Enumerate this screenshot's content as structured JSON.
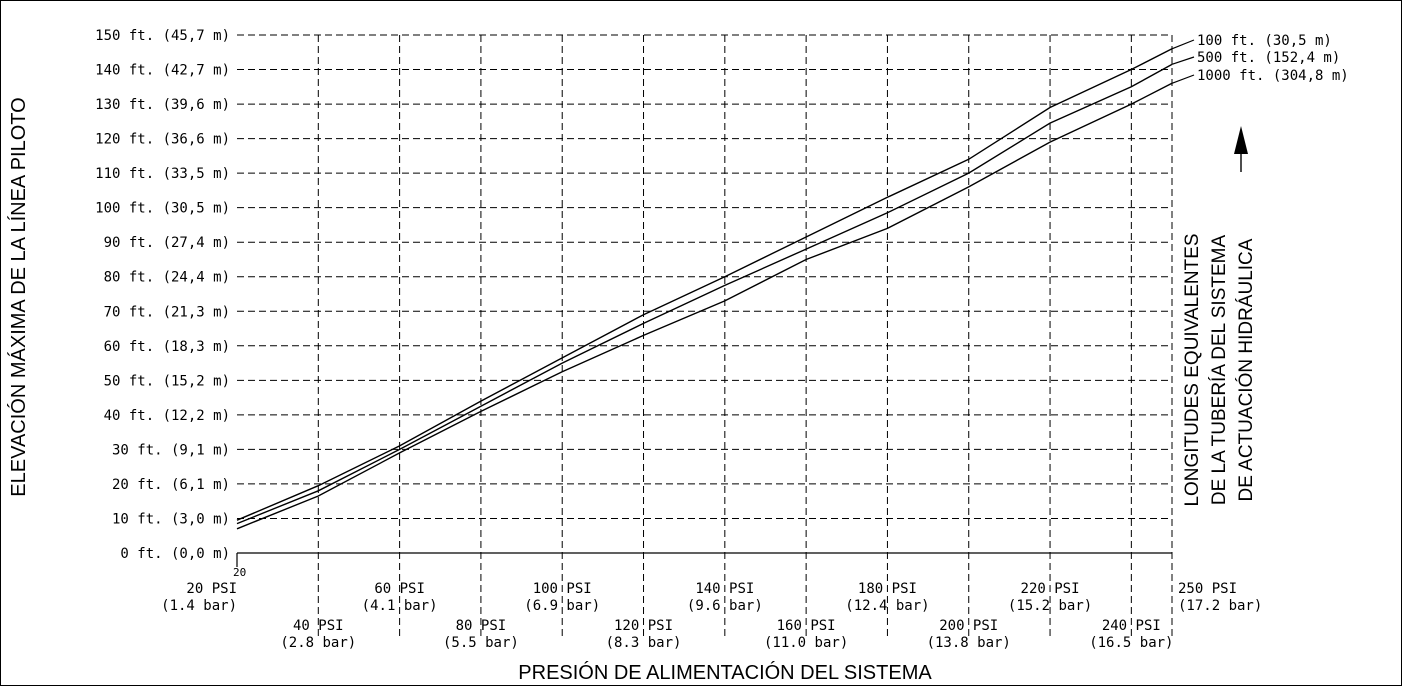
{
  "chart_data": {
    "type": "line",
    "ylabel": "ELEVACIÓN MÁXIMA DE LA LÍNEA PILOTO",
    "xlabel": "PRESIÓN DE ALIMENTACIÓN DEL SISTEMA",
    "right_label_lines": [
      "LONGITUDES EQUIVALENTES",
      "DE LA TUBERÍA DEL SISTEMA",
      "DE ACTUACIÓN HIDRÁULICA"
    ],
    "stray_label": "20",
    "xlim": [
      20,
      250
    ],
    "ylim": [
      0,
      150
    ],
    "y_ticks": [
      {
        "v": 0,
        "label": "0 ft. (0,0 m)"
      },
      {
        "v": 10,
        "label": "10 ft. (3,0 m)"
      },
      {
        "v": 20,
        "label": "20 ft. (6,1 m)"
      },
      {
        "v": 30,
        "label": "30 ft. (9,1 m)"
      },
      {
        "v": 40,
        "label": "40 ft. (12,2 m)"
      },
      {
        "v": 50,
        "label": "50 ft. (15,2 m)"
      },
      {
        "v": 60,
        "label": "60 ft. (18,3 m)"
      },
      {
        "v": 70,
        "label": "70 ft. (21,3 m)"
      },
      {
        "v": 80,
        "label": "80 ft. (24,4 m)"
      },
      {
        "v": 90,
        "label": "90 ft. (27,4 m)"
      },
      {
        "v": 100,
        "label": "100 ft. (30,5 m)"
      },
      {
        "v": 110,
        "label": "110 ft. (33,5 m)"
      },
      {
        "v": 120,
        "label": "120 ft. (36,6 m)"
      },
      {
        "v": 130,
        "label": "130 ft. (39,6 m)"
      },
      {
        "v": 140,
        "label": "140 ft. (42,7 m)"
      },
      {
        "v": 150,
        "label": "150 ft. (45,7 m)"
      }
    ],
    "x_ticks": [
      {
        "v": 20,
        "psi": "20 PSI",
        "bar": "(1.4 bar)",
        "row": 1
      },
      {
        "v": 40,
        "psi": "40 PSI",
        "bar": "(2.8 bar)",
        "row": 2
      },
      {
        "v": 60,
        "psi": "60 PSI",
        "bar": "(4.1 bar)",
        "row": 1
      },
      {
        "v": 80,
        "psi": "80 PSI",
        "bar": "(5.5 bar)",
        "row": 2
      },
      {
        "v": 100,
        "psi": "100 PSI",
        "bar": "(6.9 bar)",
        "row": 1
      },
      {
        "v": 120,
        "psi": "120 PSI",
        "bar": "(8.3 bar)",
        "row": 2
      },
      {
        "v": 140,
        "psi": "140 PSI",
        "bar": "(9.6 bar)",
        "row": 1
      },
      {
        "v": 160,
        "psi": "160 PSI",
        "bar": "(11.0 bar)",
        "row": 2
      },
      {
        "v": 180,
        "psi": "180 PSI",
        "bar": "(12.4 bar)",
        "row": 1
      },
      {
        "v": 200,
        "psi": "200 PSI",
        "bar": "(13.8 bar)",
        "row": 2
      },
      {
        "v": 220,
        "psi": "220 PSI",
        "bar": "(15.2 bar)",
        "row": 1
      },
      {
        "v": 240,
        "psi": "240 PSI",
        "bar": "(16.5 bar)",
        "row": 2
      },
      {
        "v": 250,
        "psi": "250 PSI",
        "bar": "(17.2 bar)",
        "row": 1
      }
    ],
    "series": [
      {
        "name": "100 ft. (30,5 m)",
        "x": [
          20,
          40,
          60,
          80,
          100,
          120,
          140,
          160,
          180,
          200,
          220,
          240,
          250
        ],
        "y": [
          9.5,
          19.5,
          31,
          44,
          56.5,
          69,
          80,
          91.5,
          103,
          114,
          129,
          140,
          146
        ]
      },
      {
        "name": "500 ft. (152,4 m)",
        "x": [
          20,
          40,
          60,
          80,
          100,
          120,
          140,
          160,
          180,
          200,
          220,
          240,
          250
        ],
        "y": [
          8.5,
          18,
          30,
          42.5,
          55,
          66.5,
          77.5,
          88,
          98.5,
          110,
          124.5,
          135,
          141.5
        ]
      },
      {
        "name": "1000 ft. (304,8 m)",
        "x": [
          20,
          40,
          60,
          80,
          100,
          120,
          140,
          160,
          180,
          200,
          220,
          240,
          250
        ],
        "y": [
          7,
          16.5,
          29,
          41,
          52.5,
          63,
          73,
          85,
          94,
          106,
          119,
          130,
          136
        ]
      }
    ]
  }
}
